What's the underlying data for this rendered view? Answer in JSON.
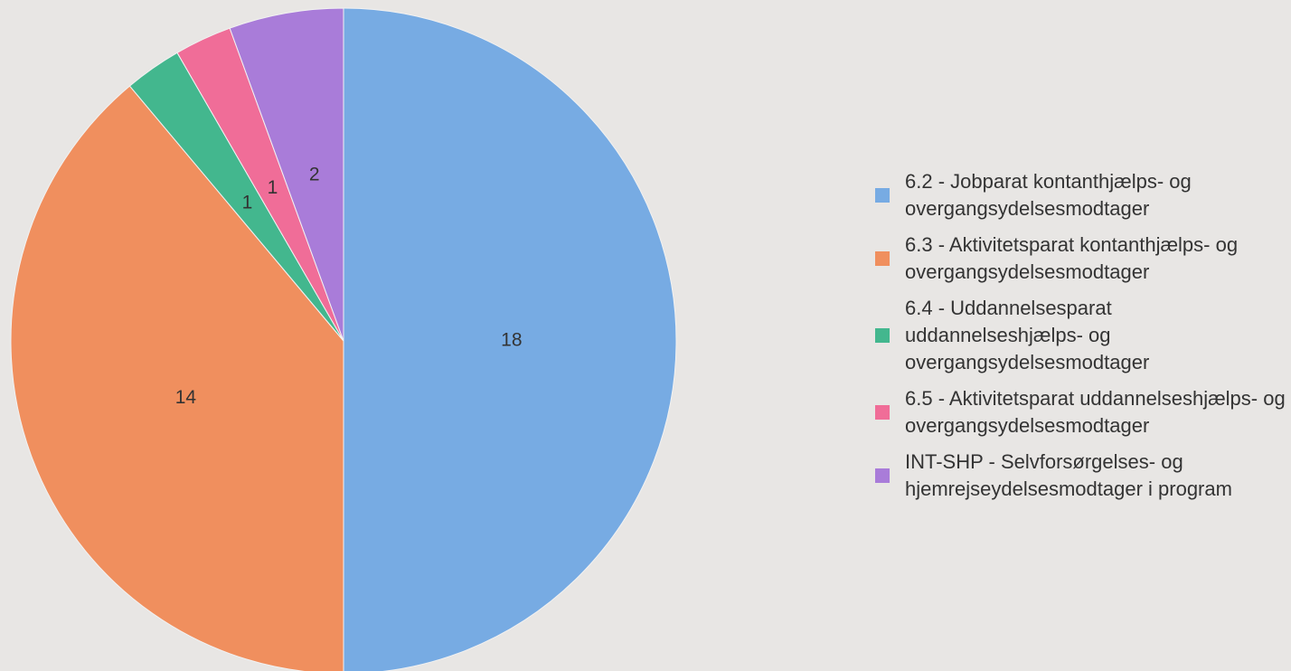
{
  "chart_data": {
    "type": "pie",
    "categories": [
      "6.2 - Jobparat kontanthjælps- og overgangsydelsesmodtager",
      "6.3 - Aktivitetsparat kontanthjælps- og overgangsydelsesmodtager",
      "6.4 - Uddannelsesparat uddannelseshjælps- og overgangsydelsesmodtager",
      "6.5 - Aktivitetsparat uddannelseshjælps- og overgangsydelsesmodtager",
      "INT-SHP - Selvforsørgelses- og hjemrejseydelsesmodtager i program"
    ],
    "values": [
      18,
      14,
      1,
      1,
      2
    ],
    "colors": [
      "#77abe3",
      "#f08f5e",
      "#43b78e",
      "#f06d98",
      "#a97cd9"
    ],
    "legend": "right"
  }
}
